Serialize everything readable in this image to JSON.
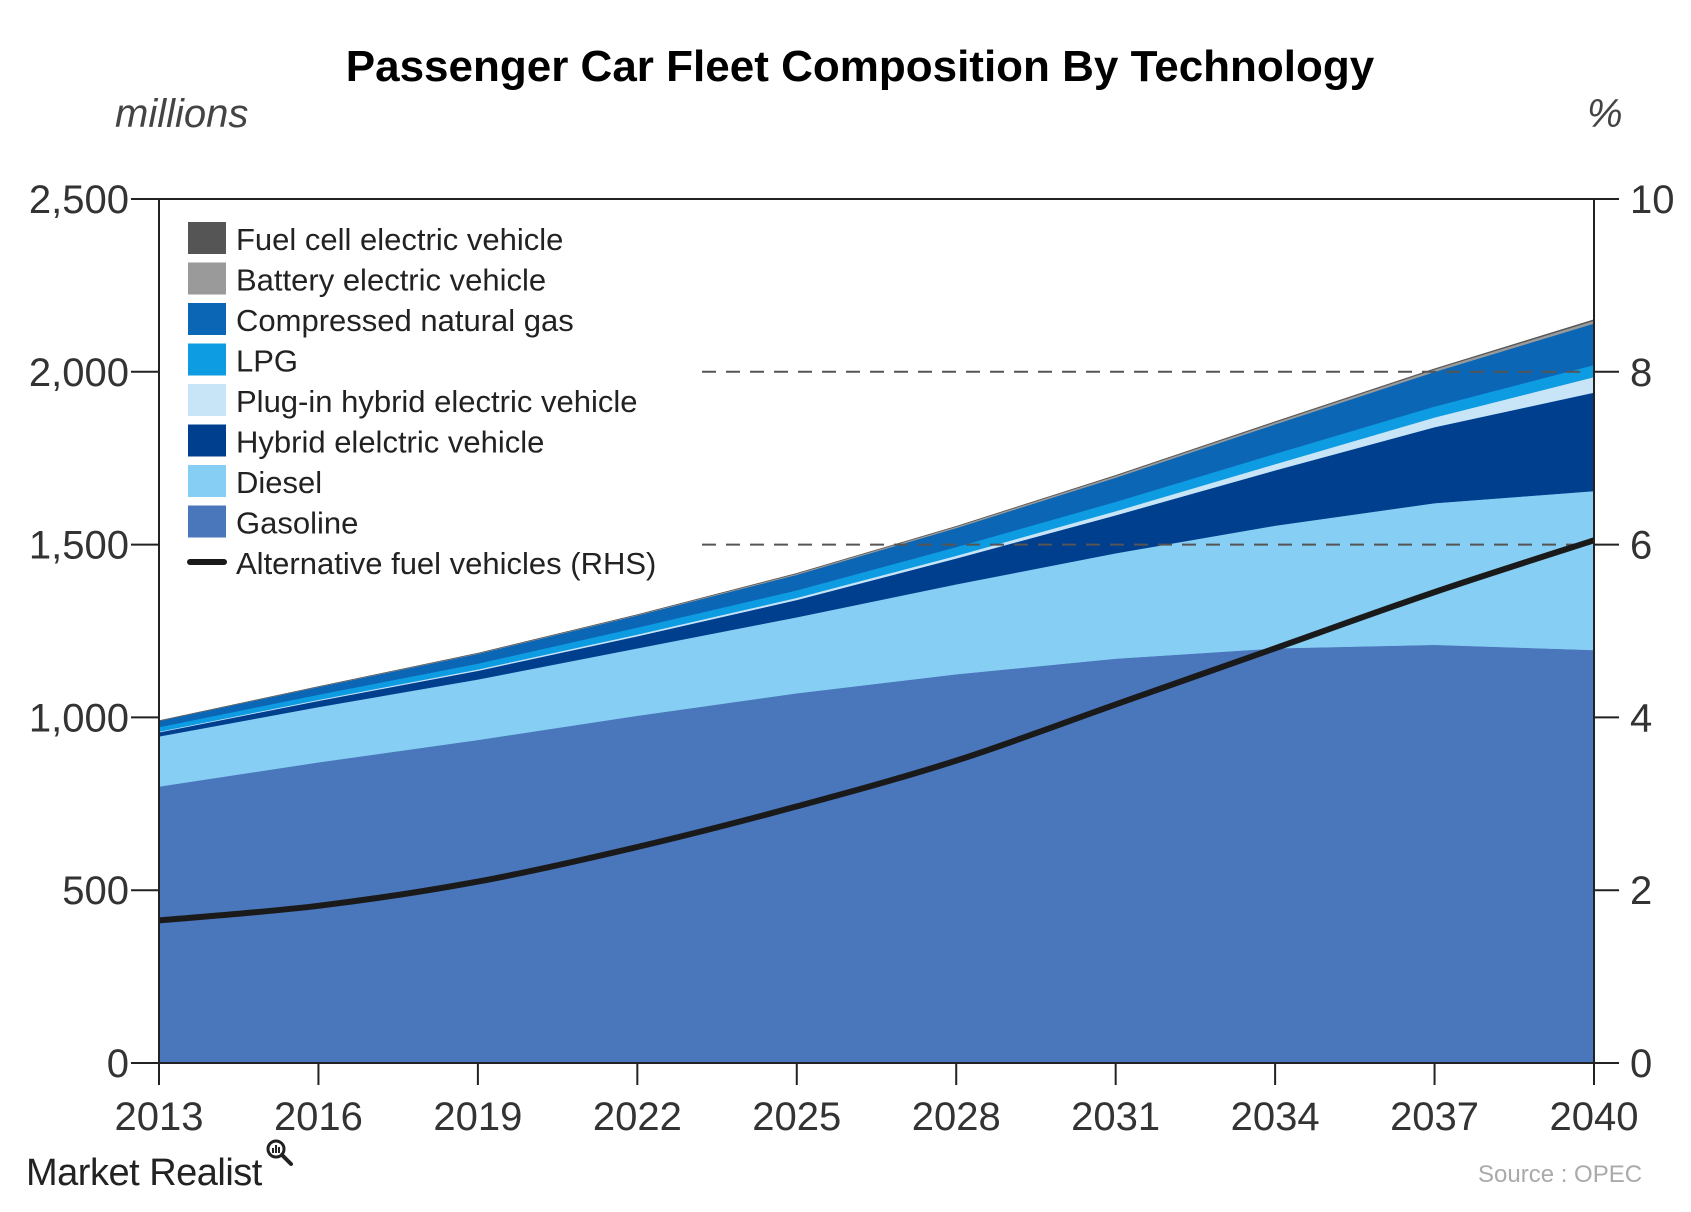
{
  "chart_data": {
    "type": "area",
    "title": "Passenger Car Fleet Composition By Technology",
    "ylabel": "millions",
    "y2label": "%",
    "x": [
      2013,
      2016,
      2019,
      2022,
      2025,
      2028,
      2031,
      2034,
      2037,
      2040
    ],
    "xticks": [
      "2013",
      "2016",
      "2019",
      "2022",
      "2025",
      "2028",
      "2031",
      "2034",
      "2037",
      "2040"
    ],
    "ylim": [
      0,
      2500
    ],
    "yticks": [
      "0",
      "500",
      "1,000",
      "1,500",
      "2,000",
      "2,500"
    ],
    "y2lim": [
      0,
      10
    ],
    "y2ticks": [
      "0",
      "2",
      "4",
      "6",
      "8",
      "10"
    ],
    "stack_order": "bottom-to-top",
    "series": [
      {
        "name": "Gasoline",
        "color": "#4a76bb",
        "values": [
          800,
          870,
          935,
          1005,
          1070,
          1125,
          1170,
          1200,
          1210,
          1195
        ]
      },
      {
        "name": "Diesel",
        "color": "#86cef3",
        "values": [
          145,
          160,
          175,
          195,
          220,
          260,
          305,
          355,
          410,
          460
        ]
      },
      {
        "name": "Hybrid elelctric vehicle",
        "color": "#003f8e",
        "values": [
          12,
          18,
          25,
          35,
          50,
          75,
          110,
          160,
          220,
          285
        ]
      },
      {
        "name": "Plug-in hybrid electric vehicle",
        "color": "#c8e5f8",
        "values": [
          2,
          3,
          4,
          5,
          6,
          8,
          12,
          18,
          28,
          45
        ]
      },
      {
        "name": "LPG",
        "color": "#0d9be1",
        "values": [
          13,
          15,
          17,
          20,
          22,
          25,
          27,
          30,
          32,
          35
        ]
      },
      {
        "name": "Compressed natural gas",
        "color": "#0b66b5",
        "values": [
          18,
          22,
          28,
          35,
          45,
          55,
          70,
          85,
          100,
          120
        ]
      },
      {
        "name": "Battery electric vehicle",
        "color": "#9a9a9a",
        "values": [
          0.5,
          1,
          1.5,
          2,
          3,
          4,
          5,
          6,
          7,
          8
        ]
      },
      {
        "name": "Fuel cell electric vehicle",
        "color": "#555555",
        "values": [
          0,
          0,
          0.5,
          0.5,
          1,
          1,
          1.5,
          2,
          2,
          3
        ]
      }
    ],
    "line_series": {
      "name": "Alternative fuel vehicles (RHS)",
      "axis": "right",
      "color": "#1a1a1a",
      "values": [
        1.65,
        1.82,
        2.1,
        2.5,
        2.97,
        3.5,
        4.15,
        4.8,
        5.45,
        6.05
      ]
    },
    "legend_order": [
      "Fuel cell electric vehicle",
      "Battery electric vehicle",
      "Compressed natural gas",
      "LPG",
      "Plug-in hybrid electric vehicle",
      "Hybrid elelctric vehicle",
      "Diesel",
      "Gasoline",
      "Alternative fuel vehicles (RHS)"
    ],
    "legend_position": "top-left",
    "reference_lines": {
      "axis": "left",
      "values": [
        2000,
        1500
      ],
      "style": "dashed"
    },
    "grid": false
  },
  "branding": {
    "logo_text": "Market Realist",
    "logo_icon": "magnifier-icon"
  },
  "source": "Source : OPEC"
}
